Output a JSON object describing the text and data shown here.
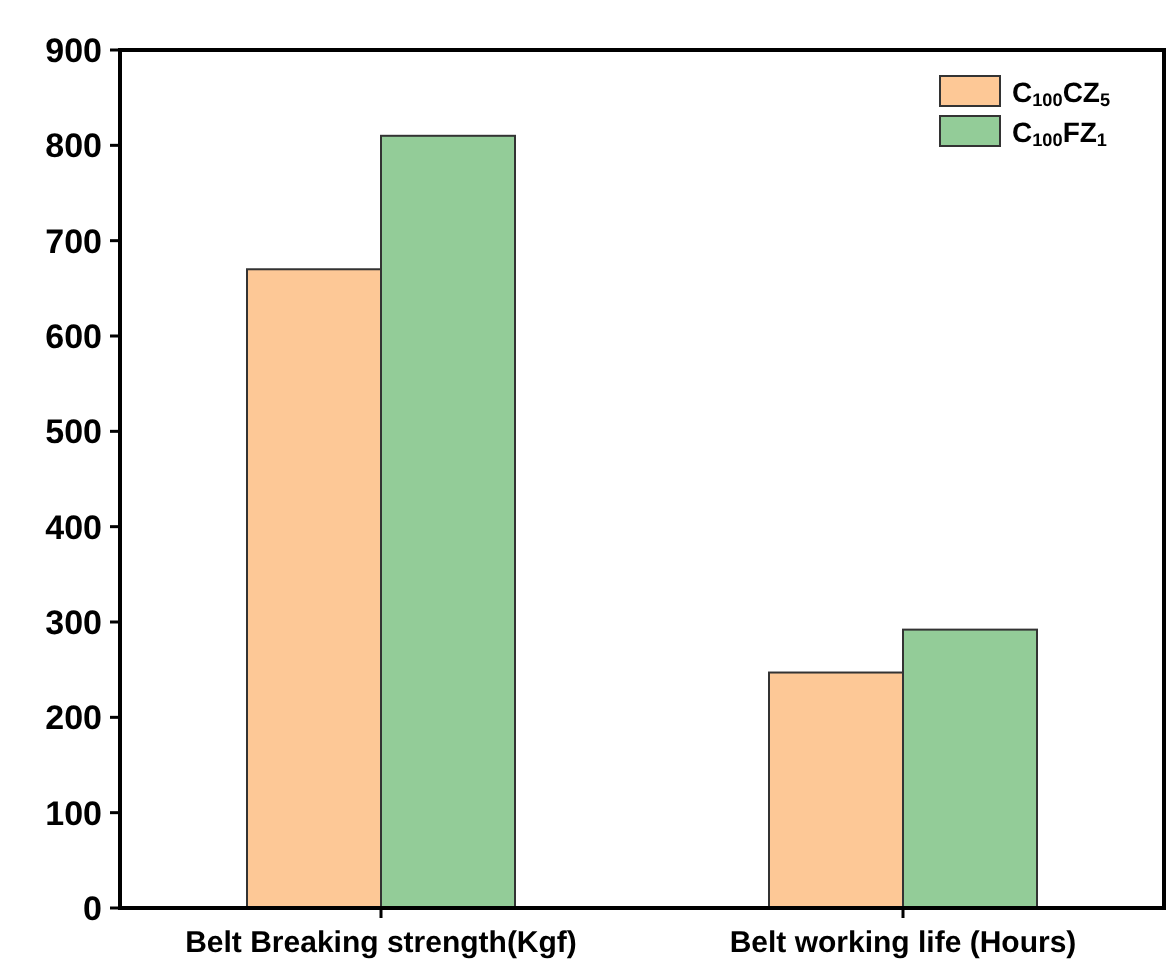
{
  "chart_data": {
    "type": "bar",
    "categories": [
      "Belt Breaking strength(Kgf)",
      "Belt working life (Hours)"
    ],
    "series": [
      {
        "name": "C$_{100}$CZ$_{5}$",
        "color": "#fdc896",
        "values": [
          670,
          247
        ]
      },
      {
        "name": "C$_{100}$FZ$_{1}$",
        "color": "#93cc98",
        "values": [
          810,
          292
        ]
      }
    ],
    "ylim": [
      0,
      900
    ],
    "yticks": [
      0,
      100,
      200,
      300,
      400,
      500,
      600,
      700,
      800,
      900
    ],
    "grid": false,
    "legend": "top right"
  }
}
